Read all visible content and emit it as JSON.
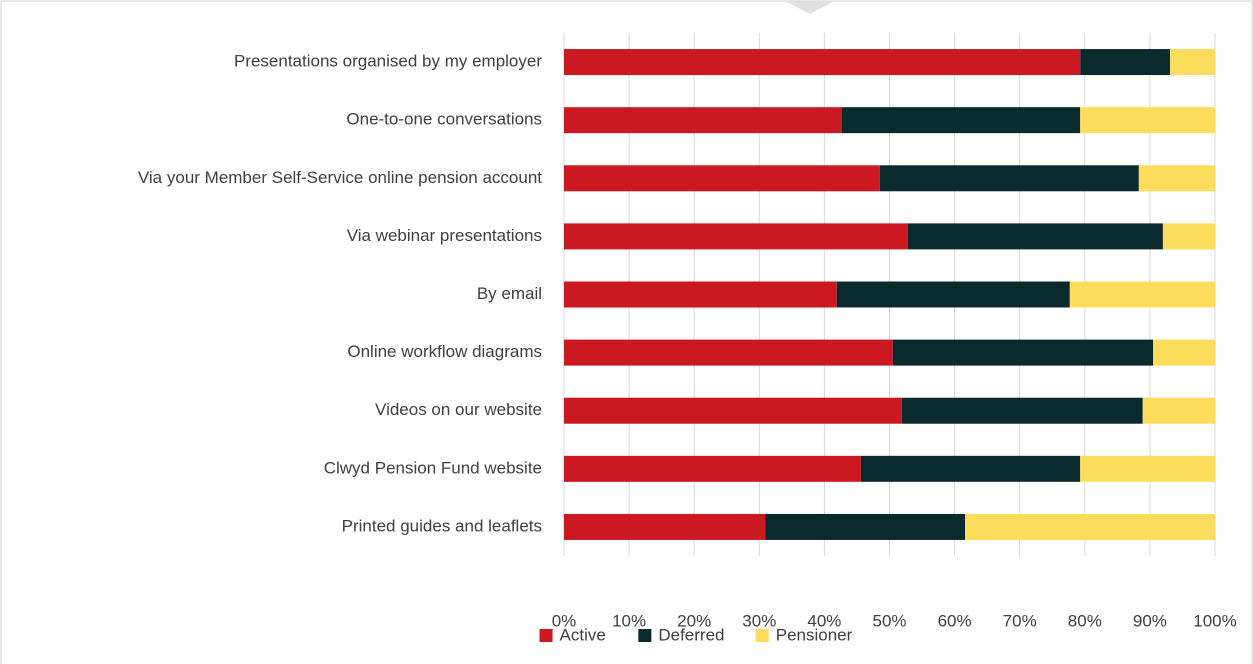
{
  "chart_data": {
    "type": "stacked-barh",
    "categories": [
      "Presentations organised by my employer",
      "One-to-one conversations",
      "Via your Member Self-Service online pension account",
      "Via webinar presentations",
      "By email",
      "Online workflow diagrams",
      "Videos on our website",
      "Clwyd Pension Fund website",
      "Printed guides and leaflets"
    ],
    "series": [
      {
        "name": "Active",
        "color": "#cc1820",
        "values": [
          79.3,
          42.7,
          48.5,
          52.8,
          41.9,
          50.5,
          51.9,
          45.6,
          30.9
        ]
      },
      {
        "name": "Deferred",
        "color": "#0b2a2e",
        "values": [
          13.8,
          36.6,
          39.8,
          39.2,
          35.8,
          40.0,
          37.0,
          33.7,
          30.7
        ]
      },
      {
        "name": "Pensioner",
        "color": "#fcdc5a",
        "values": [
          6.9,
          20.7,
          11.7,
          8.0,
          22.3,
          9.5,
          11.1,
          20.7,
          38.4
        ]
      }
    ],
    "xlim": [
      0,
      100
    ],
    "xticks": [
      {
        "value": 0,
        "label": "0%"
      },
      {
        "value": 10,
        "label": "10%"
      },
      {
        "value": 20,
        "label": "20%"
      },
      {
        "value": 30,
        "label": "30%"
      },
      {
        "value": 40,
        "label": "40%"
      },
      {
        "value": 50,
        "label": "50%"
      },
      {
        "value": 60,
        "label": "60%"
      },
      {
        "value": 70,
        "label": "70%"
      },
      {
        "value": 80,
        "label": "80%"
      },
      {
        "value": 90,
        "label": "90%"
      },
      {
        "value": 100,
        "label": "100%"
      }
    ],
    "grid": true,
    "legend": "bottom"
  }
}
